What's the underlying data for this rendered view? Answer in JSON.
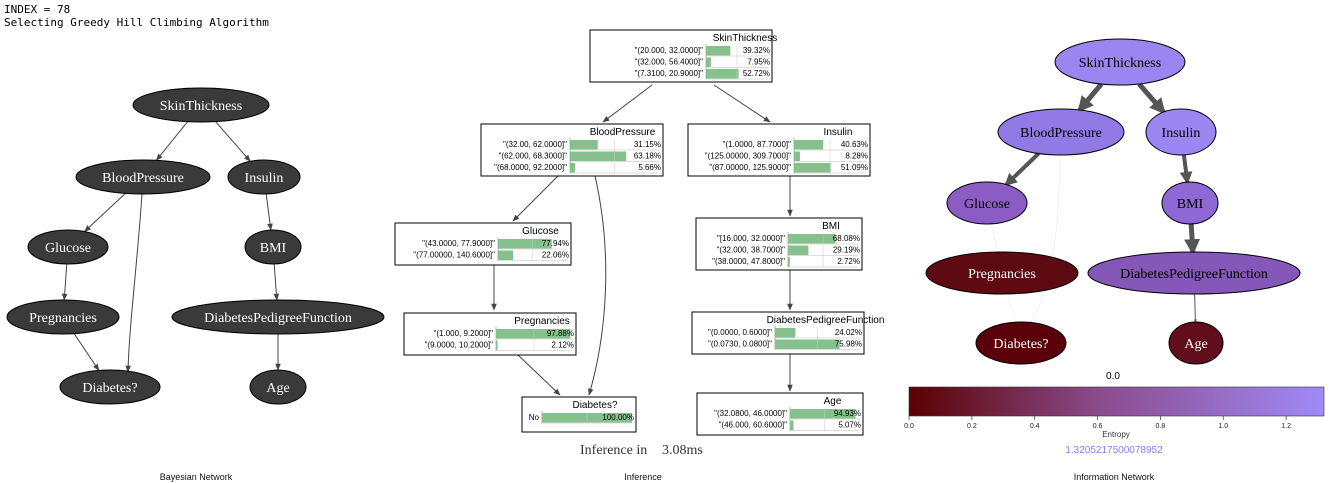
{
  "header": {
    "index_line": "INDEX = 78",
    "algo_line": "Selecting Greedy Hill Climbing Algorithm"
  },
  "captions": {
    "bayesian": "Bayesian Network",
    "inference": "Inference",
    "information": "Information Network"
  },
  "colors": {
    "dark_node": "#3a3a3a",
    "bar": "#86c08c",
    "edge": "#444444"
  },
  "bayesian_network": {
    "nodes": [
      "SkinThickness",
      "BloodPressure",
      "Insulin",
      "Glucose",
      "BMI",
      "Pregnancies",
      "DiabetesPedigreeFunction",
      "Diabetes?",
      "Age"
    ],
    "edges": [
      [
        "SkinThickness",
        "BloodPressure"
      ],
      [
        "SkinThickness",
        "Insulin"
      ],
      [
        "BloodPressure",
        "Glucose"
      ],
      [
        "BloodPressure",
        "Diabetes?"
      ],
      [
        "Glucose",
        "Pregnancies"
      ],
      [
        "Pregnancies",
        "Diabetes?"
      ],
      [
        "Insulin",
        "BMI"
      ],
      [
        "BMI",
        "DiabetesPedigreeFunction"
      ],
      [
        "DiabetesPedigreeFunction",
        "Age"
      ]
    ]
  },
  "inference": {
    "time_label": "Inference in",
    "time_value": "3.08ms",
    "boxes": [
      {
        "name": "SkinThickness",
        "rows": [
          {
            "label": "\"(20.000, 32.0000]\"",
            "pct": "39.32%",
            "p": 0.3932
          },
          {
            "label": "\"(32.000, 56.4000]\"",
            "pct": "7.95%",
            "p": 0.0795
          },
          {
            "label": "\"(7.3100, 20.9000]\"",
            "pct": "52.72%",
            "p": 0.5272
          }
        ]
      },
      {
        "name": "BloodPressure",
        "rows": [
          {
            "label": "\"(32.00, 62.0000]\"",
            "pct": "31.15%",
            "p": 0.3115
          },
          {
            "label": "\"(62.000, 68.3000]\"",
            "pct": "63.18%",
            "p": 0.6318
          },
          {
            "label": "\"(68.0000, 92.2000]\"",
            "pct": "5.66%",
            "p": 0.0566
          }
        ]
      },
      {
        "name": "Insulin",
        "rows": [
          {
            "label": "\"(1.0000, 87.7000]\"",
            "pct": "40.63%",
            "p": 0.4063
          },
          {
            "label": "\"(125.00000, 309.7000]\"",
            "pct": "8.28%",
            "p": 0.0828
          },
          {
            "label": "\"(87.00000, 125.9000]\"",
            "pct": "51.09%",
            "p": 0.5109
          }
        ]
      },
      {
        "name": "Glucose",
        "rows": [
          {
            "label": "\"(43.0000, 77.9000]\"",
            "pct": "77.94%",
            "p": 0.7794
          },
          {
            "label": "\"(77.00000, 140.6000]\"",
            "pct": "22.06%",
            "p": 0.2206
          }
        ]
      },
      {
        "name": "BMI",
        "rows": [
          {
            "label": "\"[16.000, 32.0000]\"",
            "pct": "68.08%",
            "p": 0.6808
          },
          {
            "label": "\"(32.000, 38.7000]\"",
            "pct": "29.19%",
            "p": 0.2919
          },
          {
            "label": "\"(38.0000, 47.8000]\"",
            "pct": "2.72%",
            "p": 0.0272
          }
        ]
      },
      {
        "name": "Pregnancies",
        "rows": [
          {
            "label": "\"(1.000, 9.2000]\"",
            "pct": "97.88%",
            "p": 0.9788
          },
          {
            "label": "\"(9.0000, 10.2000]\"",
            "pct": "2.12%",
            "p": 0.0212
          }
        ]
      },
      {
        "name": "DiabetesPedigreeFunction",
        "rows": [
          {
            "label": "\"(0.0000, 0.6000]\"",
            "pct": "24.02%",
            "p": 0.2402
          },
          {
            "label": "\"(0.0730, 0.0800]\"",
            "pct": "75.98%",
            "p": 0.7598
          }
        ]
      },
      {
        "name": "Diabetes?",
        "rows": [
          {
            "label": "No",
            "pct": "100.00%",
            "p": 1.0
          }
        ]
      },
      {
        "name": "Age",
        "rows": [
          {
            "label": "\"(32.0800, 46.0000]\"",
            "pct": "94.93%",
            "p": 0.9493
          },
          {
            "label": "\"(46.000, 60.6000]\"",
            "pct": "5.07%",
            "p": 0.0507
          }
        ]
      }
    ]
  },
  "information_network": {
    "nodes": [
      {
        "name": "SkinThickness",
        "color": "#9b85f0"
      },
      {
        "name": "BloodPressure",
        "color": "#9179e6"
      },
      {
        "name": "Insulin",
        "color": "#9c86f2"
      },
      {
        "name": "Glucose",
        "color": "#8a5cc4"
      },
      {
        "name": "BMI",
        "color": "#8e68d4"
      },
      {
        "name": "Pregnancies",
        "color": "#5e0a12"
      },
      {
        "name": "DiabetesPedigreeFunction",
        "color": "#8457b8"
      },
      {
        "name": "Diabetes?",
        "color": "#5a0008"
      },
      {
        "name": "Age",
        "color": "#610d1c"
      }
    ],
    "colorbar": {
      "top_value": "0.0",
      "ticks": [
        "0.0",
        "0.2",
        "0.4",
        "0.6",
        "0.8",
        "1.0",
        "1.2"
      ],
      "axis_label": "Entropy",
      "value": "1.3205217500078952",
      "value_color": "#8e7cf0",
      "min_color": "#5a0000",
      "max_color": "#a08af8"
    }
  }
}
